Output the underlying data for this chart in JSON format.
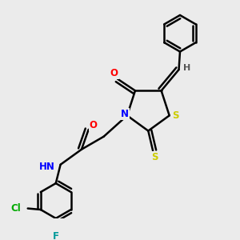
{
  "background_color": "#ebebeb",
  "bond_color": "black",
  "bond_lw": 1.8,
  "atom_colors": {
    "O": "#ff0000",
    "N": "#0000ff",
    "S": "#cccc00",
    "Cl": "#00aa00",
    "F": "#009999",
    "H": "#555555",
    "C": "black"
  },
  "font_size": 8.5
}
